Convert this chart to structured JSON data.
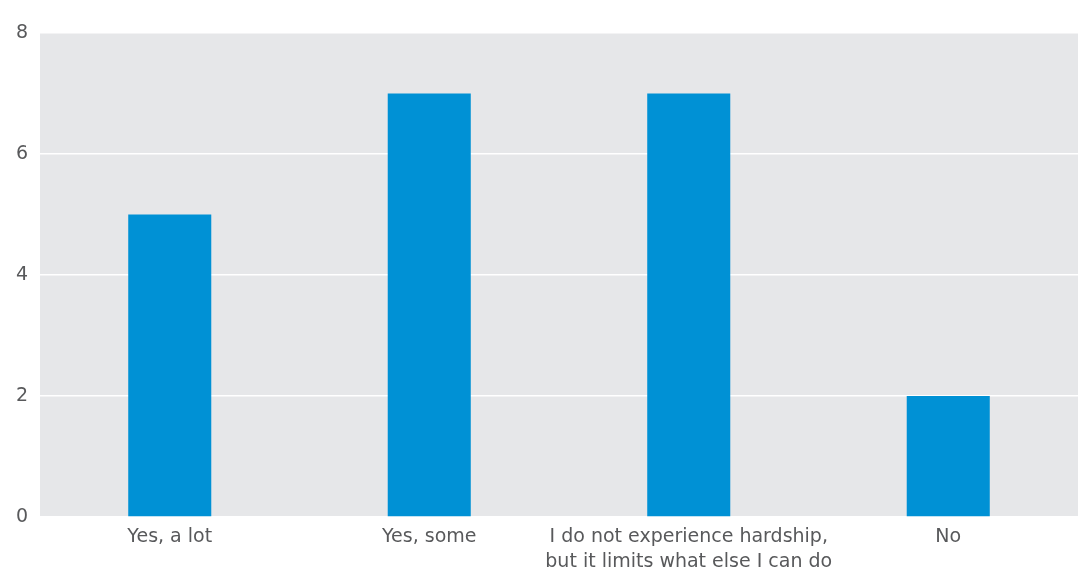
{
  "chart_data": {
    "type": "bar",
    "categories": [
      "Yes, a lot",
      "Yes, some",
      "I do not experience hardship, but it limits what else I can do",
      "No"
    ],
    "values": [
      5,
      7,
      7,
      2
    ],
    "color": "#0091d5",
    "ylim": [
      0,
      8
    ],
    "yticks": [
      0,
      2,
      4,
      6,
      8
    ],
    "grid": "y"
  }
}
